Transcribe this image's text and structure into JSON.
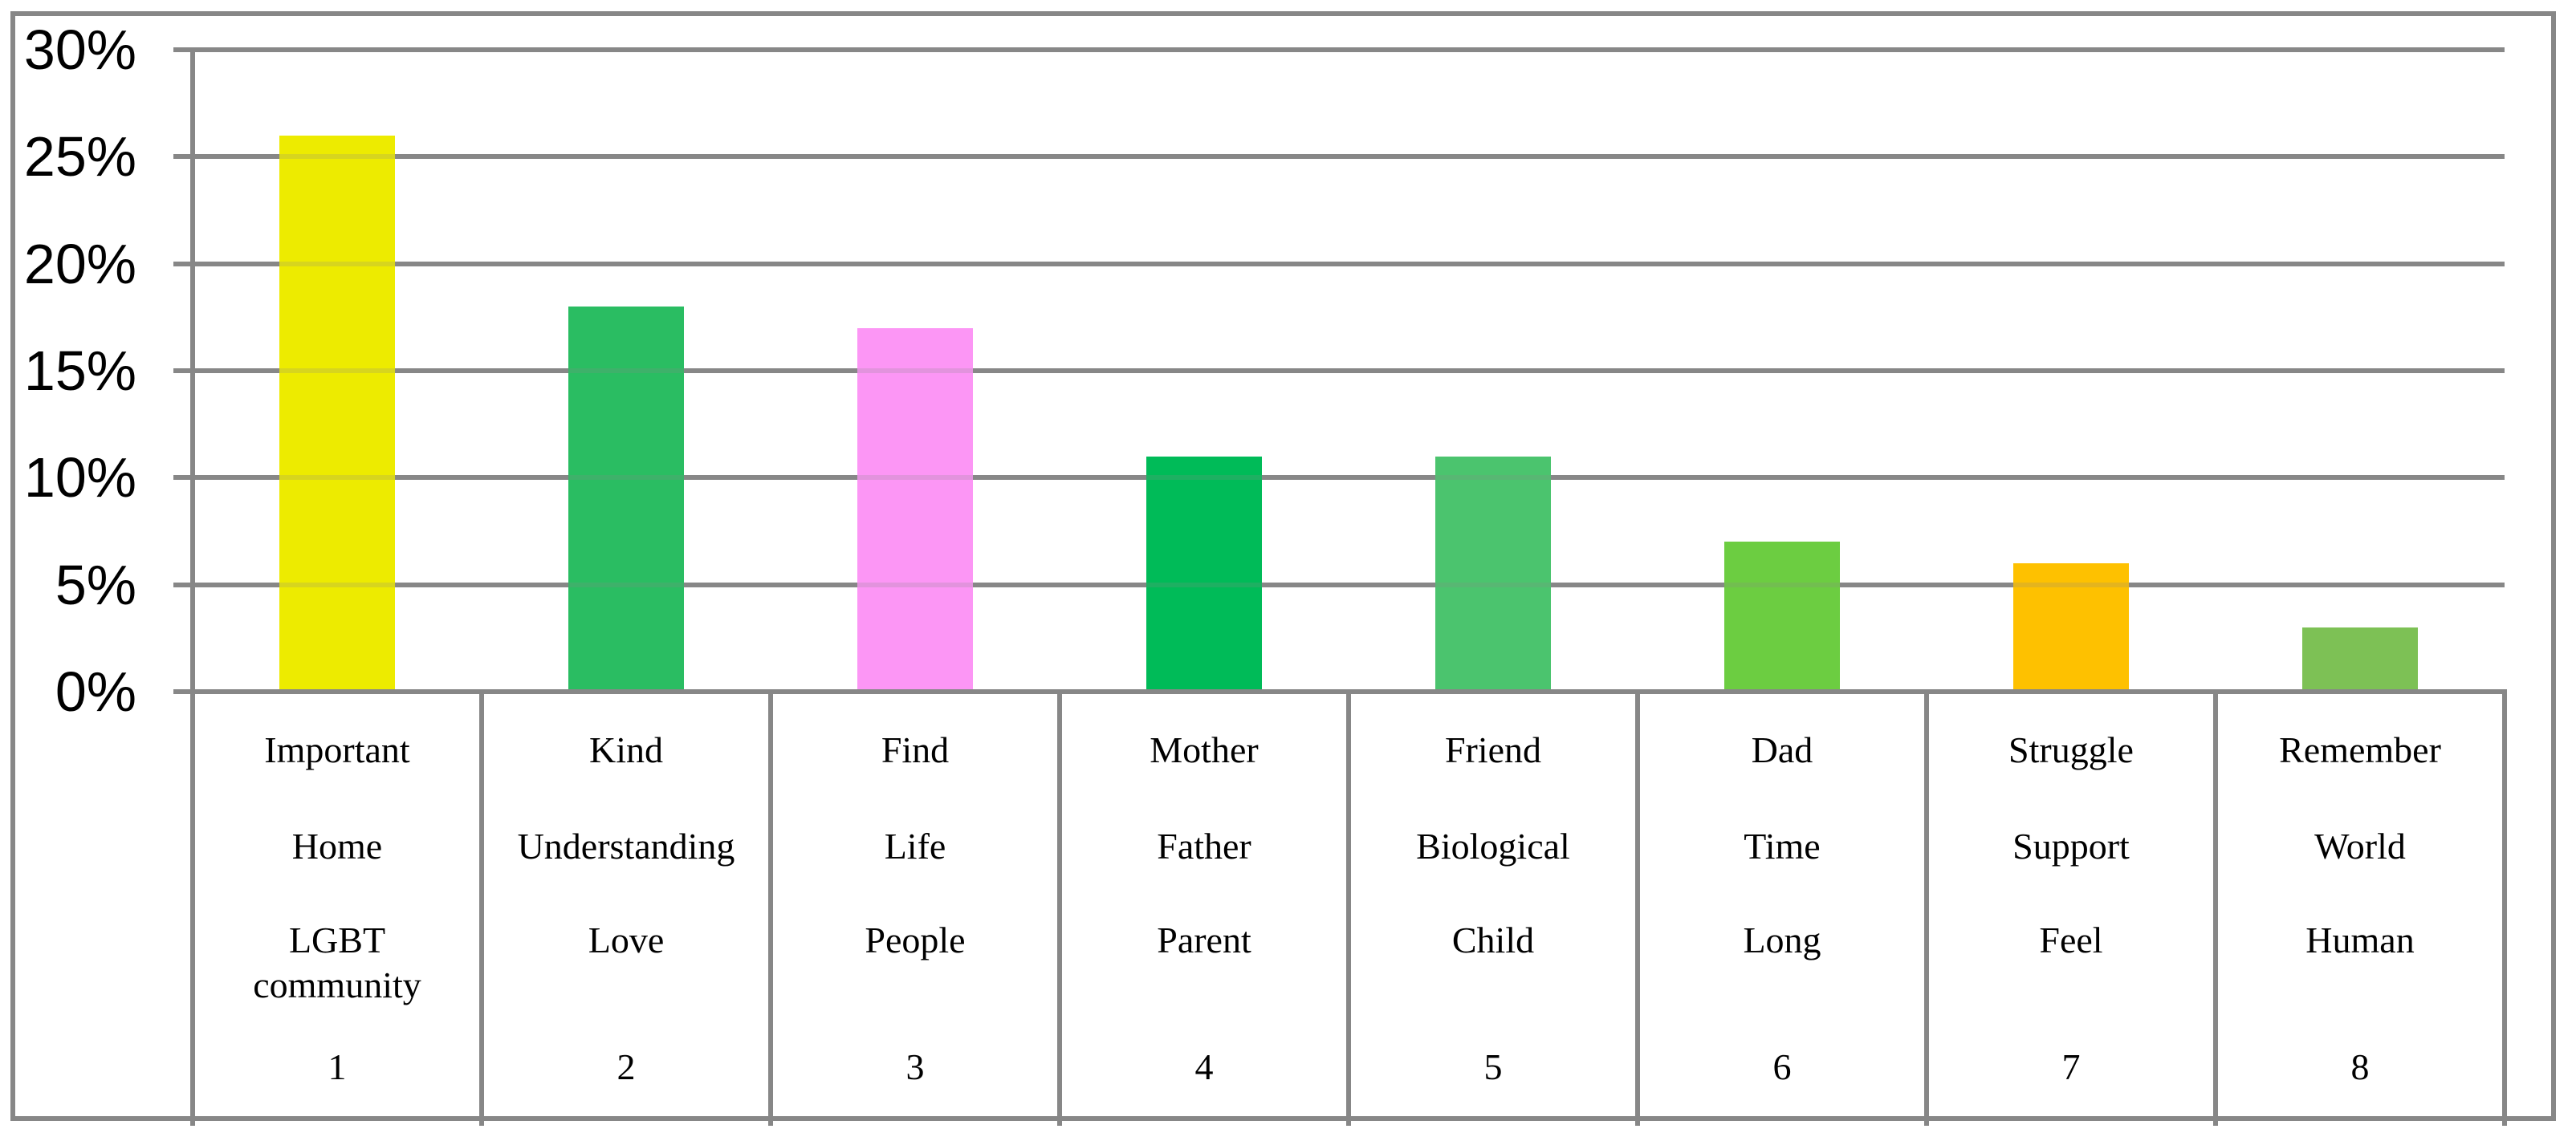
{
  "chart_data": {
    "type": "bar",
    "title": "",
    "xlabel": "",
    "ylabel": "",
    "grid": true,
    "legend": false,
    "axis_color": "#878787",
    "background_color": "#ffffff",
    "y_axis": {
      "min": 0,
      "max": 30,
      "step": 5,
      "unit": "%",
      "ticks": [
        "30%",
        "25%",
        "20%",
        "15%",
        "10%",
        "5%",
        "0%"
      ]
    },
    "values": [
      26,
      18,
      17,
      11,
      11,
      7,
      6,
      3
    ],
    "categories": [
      {
        "lines": [
          "Important",
          "Home",
          "LGBT\ncommunity"
        ],
        "number": "1",
        "value": 26,
        "color": "#EDEB00"
      },
      {
        "lines": [
          "Kind",
          "Understanding",
          "Love"
        ],
        "number": "2",
        "value": 18,
        "color": "#2ABD62"
      },
      {
        "lines": [
          "Find",
          "Life",
          "People"
        ],
        "number": "3",
        "value": 17,
        "color": "#FC96F5"
      },
      {
        "lines": [
          "Mother",
          "Father",
          "Parent"
        ],
        "number": "4",
        "value": 11,
        "color": "#00BB58"
      },
      {
        "lines": [
          "Friend",
          "Biological",
          "Child"
        ],
        "number": "5",
        "value": 11,
        "color": "#4BC46E"
      },
      {
        "lines": [
          "Dad",
          "Time",
          "Long"
        ],
        "number": "6",
        "value": 7,
        "color": "#6CCD41"
      },
      {
        "lines": [
          "Struggle",
          "Support",
          "Feel"
        ],
        "number": "7",
        "value": 6,
        "color": "#FEC100"
      },
      {
        "lines": [
          "Remember",
          "World",
          "Human"
        ],
        "number": "8",
        "value": 3,
        "color": "#7DC155"
      }
    ]
  }
}
